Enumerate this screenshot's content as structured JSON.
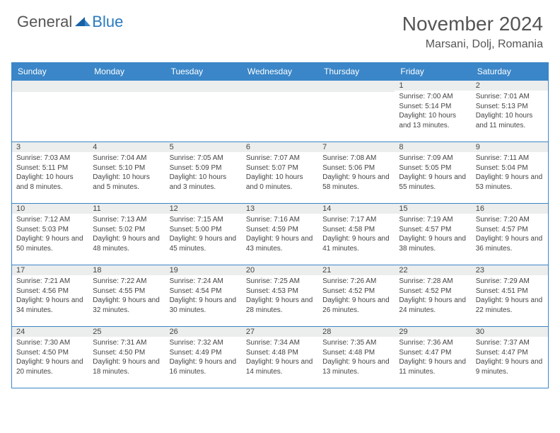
{
  "brand": {
    "general": "General",
    "blue": "Blue"
  },
  "title": {
    "month_year": "November 2024",
    "location": "Marsani, Dolj, Romania"
  },
  "colors": {
    "accent": "#3a86c8",
    "daynum_bg": "#eceded",
    "text": "#444444",
    "brand_blue": "#2a7ac0"
  },
  "dow": [
    "Sunday",
    "Monday",
    "Tuesday",
    "Wednesday",
    "Thursday",
    "Friday",
    "Saturday"
  ],
  "weeks": [
    [
      {
        "n": "",
        "sr": "",
        "ss": "",
        "dl": ""
      },
      {
        "n": "",
        "sr": "",
        "ss": "",
        "dl": ""
      },
      {
        "n": "",
        "sr": "",
        "ss": "",
        "dl": ""
      },
      {
        "n": "",
        "sr": "",
        "ss": "",
        "dl": ""
      },
      {
        "n": "",
        "sr": "",
        "ss": "",
        "dl": ""
      },
      {
        "n": "1",
        "sr": "Sunrise: 7:00 AM",
        "ss": "Sunset: 5:14 PM",
        "dl": "Daylight: 10 hours and 13 minutes."
      },
      {
        "n": "2",
        "sr": "Sunrise: 7:01 AM",
        "ss": "Sunset: 5:13 PM",
        "dl": "Daylight: 10 hours and 11 minutes."
      }
    ],
    [
      {
        "n": "3",
        "sr": "Sunrise: 7:03 AM",
        "ss": "Sunset: 5:11 PM",
        "dl": "Daylight: 10 hours and 8 minutes."
      },
      {
        "n": "4",
        "sr": "Sunrise: 7:04 AM",
        "ss": "Sunset: 5:10 PM",
        "dl": "Daylight: 10 hours and 5 minutes."
      },
      {
        "n": "5",
        "sr": "Sunrise: 7:05 AM",
        "ss": "Sunset: 5:09 PM",
        "dl": "Daylight: 10 hours and 3 minutes."
      },
      {
        "n": "6",
        "sr": "Sunrise: 7:07 AM",
        "ss": "Sunset: 5:07 PM",
        "dl": "Daylight: 10 hours and 0 minutes."
      },
      {
        "n": "7",
        "sr": "Sunrise: 7:08 AM",
        "ss": "Sunset: 5:06 PM",
        "dl": "Daylight: 9 hours and 58 minutes."
      },
      {
        "n": "8",
        "sr": "Sunrise: 7:09 AM",
        "ss": "Sunset: 5:05 PM",
        "dl": "Daylight: 9 hours and 55 minutes."
      },
      {
        "n": "9",
        "sr": "Sunrise: 7:11 AM",
        "ss": "Sunset: 5:04 PM",
        "dl": "Daylight: 9 hours and 53 minutes."
      }
    ],
    [
      {
        "n": "10",
        "sr": "Sunrise: 7:12 AM",
        "ss": "Sunset: 5:03 PM",
        "dl": "Daylight: 9 hours and 50 minutes."
      },
      {
        "n": "11",
        "sr": "Sunrise: 7:13 AM",
        "ss": "Sunset: 5:02 PM",
        "dl": "Daylight: 9 hours and 48 minutes."
      },
      {
        "n": "12",
        "sr": "Sunrise: 7:15 AM",
        "ss": "Sunset: 5:00 PM",
        "dl": "Daylight: 9 hours and 45 minutes."
      },
      {
        "n": "13",
        "sr": "Sunrise: 7:16 AM",
        "ss": "Sunset: 4:59 PM",
        "dl": "Daylight: 9 hours and 43 minutes."
      },
      {
        "n": "14",
        "sr": "Sunrise: 7:17 AM",
        "ss": "Sunset: 4:58 PM",
        "dl": "Daylight: 9 hours and 41 minutes."
      },
      {
        "n": "15",
        "sr": "Sunrise: 7:19 AM",
        "ss": "Sunset: 4:57 PM",
        "dl": "Daylight: 9 hours and 38 minutes."
      },
      {
        "n": "16",
        "sr": "Sunrise: 7:20 AM",
        "ss": "Sunset: 4:57 PM",
        "dl": "Daylight: 9 hours and 36 minutes."
      }
    ],
    [
      {
        "n": "17",
        "sr": "Sunrise: 7:21 AM",
        "ss": "Sunset: 4:56 PM",
        "dl": "Daylight: 9 hours and 34 minutes."
      },
      {
        "n": "18",
        "sr": "Sunrise: 7:22 AM",
        "ss": "Sunset: 4:55 PM",
        "dl": "Daylight: 9 hours and 32 minutes."
      },
      {
        "n": "19",
        "sr": "Sunrise: 7:24 AM",
        "ss": "Sunset: 4:54 PM",
        "dl": "Daylight: 9 hours and 30 minutes."
      },
      {
        "n": "20",
        "sr": "Sunrise: 7:25 AM",
        "ss": "Sunset: 4:53 PM",
        "dl": "Daylight: 9 hours and 28 minutes."
      },
      {
        "n": "21",
        "sr": "Sunrise: 7:26 AM",
        "ss": "Sunset: 4:52 PM",
        "dl": "Daylight: 9 hours and 26 minutes."
      },
      {
        "n": "22",
        "sr": "Sunrise: 7:28 AM",
        "ss": "Sunset: 4:52 PM",
        "dl": "Daylight: 9 hours and 24 minutes."
      },
      {
        "n": "23",
        "sr": "Sunrise: 7:29 AM",
        "ss": "Sunset: 4:51 PM",
        "dl": "Daylight: 9 hours and 22 minutes."
      }
    ],
    [
      {
        "n": "24",
        "sr": "Sunrise: 7:30 AM",
        "ss": "Sunset: 4:50 PM",
        "dl": "Daylight: 9 hours and 20 minutes."
      },
      {
        "n": "25",
        "sr": "Sunrise: 7:31 AM",
        "ss": "Sunset: 4:50 PM",
        "dl": "Daylight: 9 hours and 18 minutes."
      },
      {
        "n": "26",
        "sr": "Sunrise: 7:32 AM",
        "ss": "Sunset: 4:49 PM",
        "dl": "Daylight: 9 hours and 16 minutes."
      },
      {
        "n": "27",
        "sr": "Sunrise: 7:34 AM",
        "ss": "Sunset: 4:48 PM",
        "dl": "Daylight: 9 hours and 14 minutes."
      },
      {
        "n": "28",
        "sr": "Sunrise: 7:35 AM",
        "ss": "Sunset: 4:48 PM",
        "dl": "Daylight: 9 hours and 13 minutes."
      },
      {
        "n": "29",
        "sr": "Sunrise: 7:36 AM",
        "ss": "Sunset: 4:47 PM",
        "dl": "Daylight: 9 hours and 11 minutes."
      },
      {
        "n": "30",
        "sr": "Sunrise: 7:37 AM",
        "ss": "Sunset: 4:47 PM",
        "dl": "Daylight: 9 hours and 9 minutes."
      }
    ]
  ]
}
